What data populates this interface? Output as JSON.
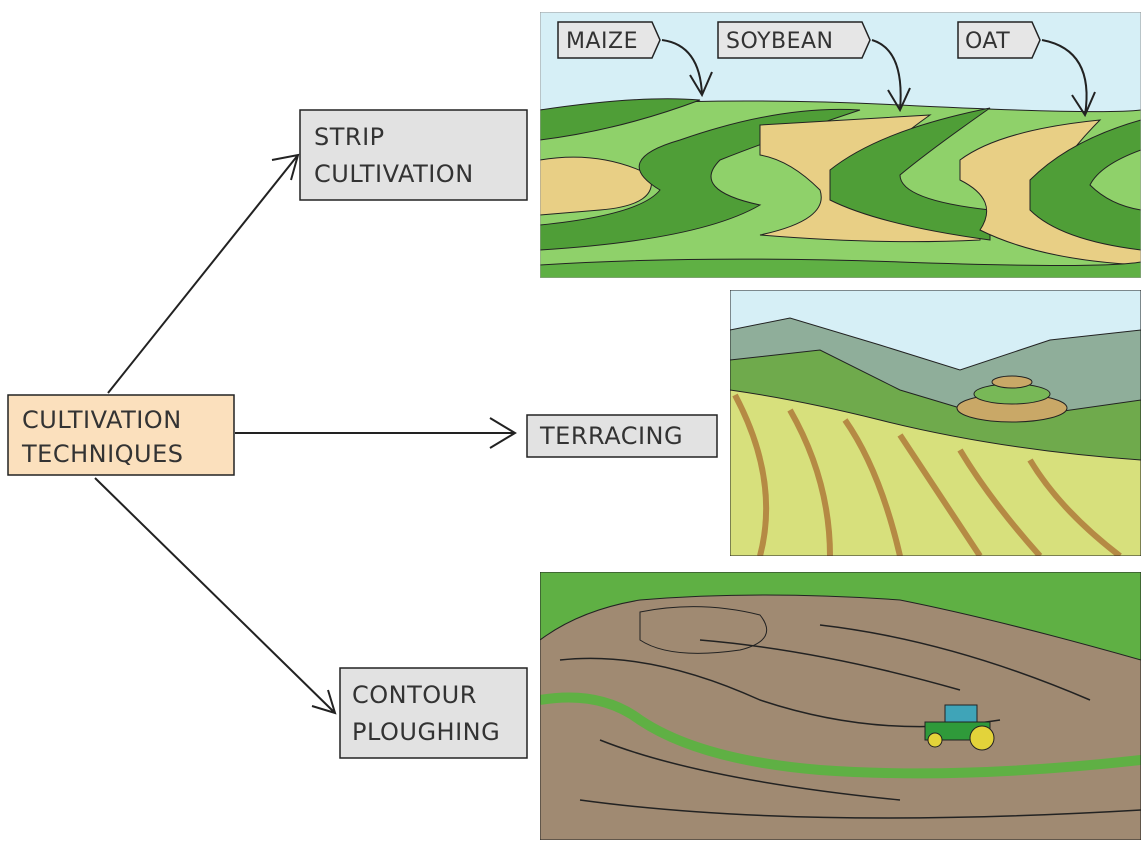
{
  "nodes": [
    {
      "lines": [
        "CULTIVATION",
        "TECHNIQUES"
      ]
    },
    {
      "lines": [
        "STRIP",
        "CULTIVATION"
      ]
    },
    {
      "lines": [
        "TERRACING"
      ]
    },
    {
      "lines": [
        "CONTOUR",
        "PLOUGHING"
      ]
    }
  ],
  "crop_labels": [
    "MAIZE",
    "SOYBEAN",
    "OAT"
  ]
}
